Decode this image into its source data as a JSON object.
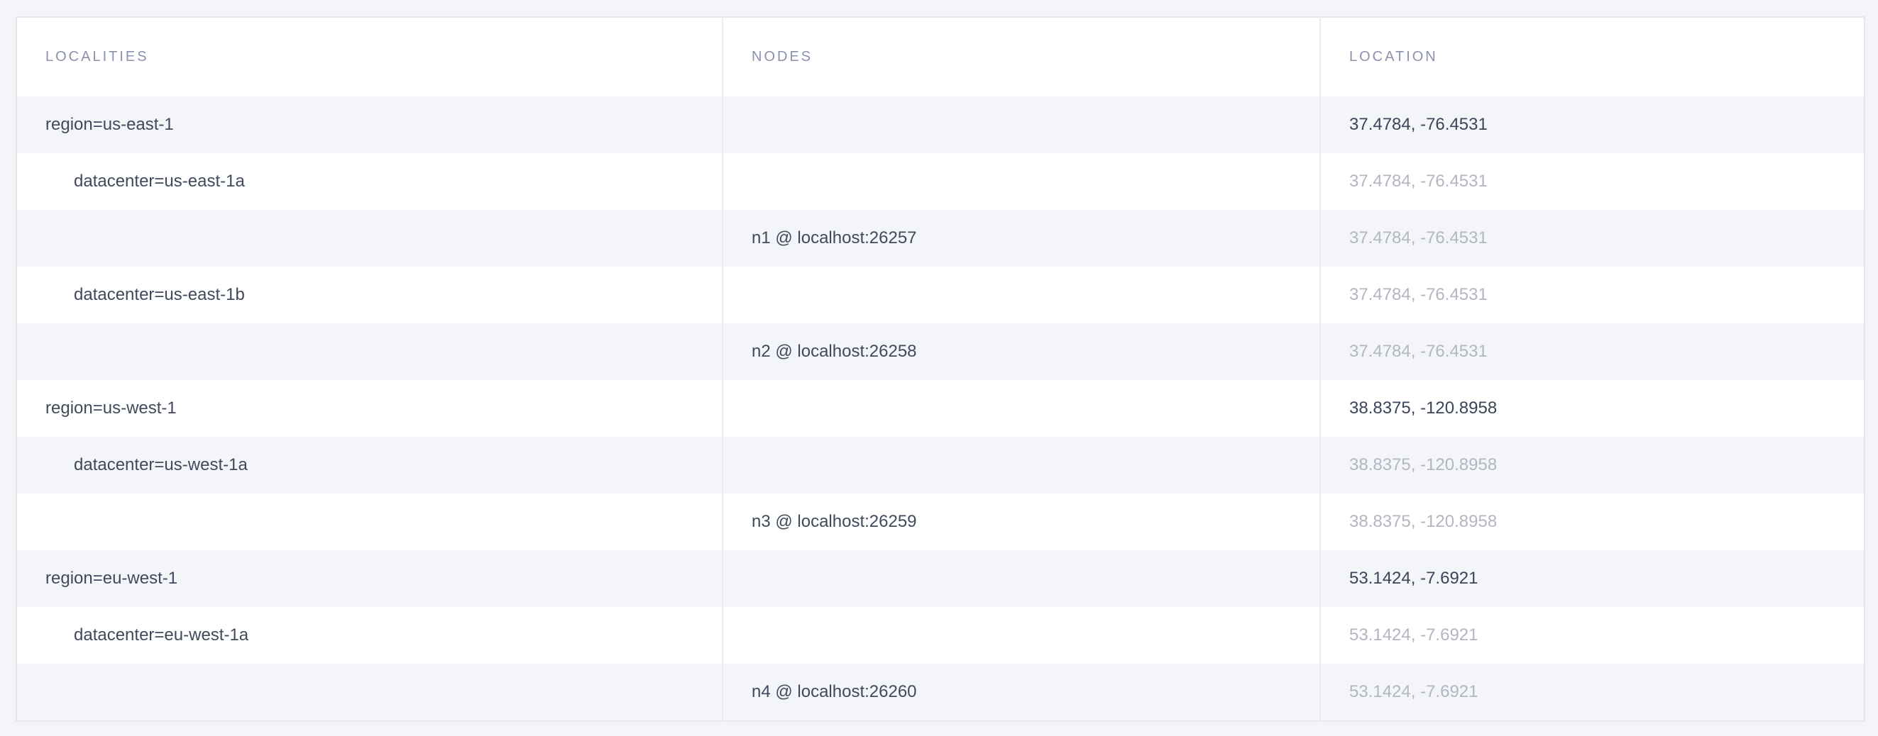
{
  "colors": {
    "page_background": "#f4f5f9",
    "row_stripe": "#f4f5f9",
    "row_white": "#ffffff",
    "table_border": "#e4e7ee",
    "column_divider": "#ebedf4",
    "header_text": "#8c92ad",
    "text_dark": "#3f4a5c",
    "text_muted": "#b2b6c2"
  },
  "table": {
    "headers": [
      "LOCALITIES",
      "NODES",
      "LOCATION"
    ],
    "rows": [
      {
        "locality": "region=us-east-1",
        "node": "",
        "location": "37.4784, -76.4531",
        "indent": 0,
        "location_muted": false
      },
      {
        "locality": "datacenter=us-east-1a",
        "node": "",
        "location": "37.4784, -76.4531",
        "indent": 1,
        "location_muted": true
      },
      {
        "locality": "",
        "node": "n1 @ localhost:26257",
        "location": "37.4784, -76.4531",
        "indent": 0,
        "location_muted": true
      },
      {
        "locality": "datacenter=us-east-1b",
        "node": "",
        "location": "37.4784, -76.4531",
        "indent": 1,
        "location_muted": true
      },
      {
        "locality": "",
        "node": "n2 @ localhost:26258",
        "location": "37.4784, -76.4531",
        "indent": 0,
        "location_muted": true
      },
      {
        "locality": "region=us-west-1",
        "node": "",
        "location": "38.8375, -120.8958",
        "indent": 0,
        "location_muted": false
      },
      {
        "locality": "datacenter=us-west-1a",
        "node": "",
        "location": "38.8375, -120.8958",
        "indent": 1,
        "location_muted": true
      },
      {
        "locality": "",
        "node": "n3 @ localhost:26259",
        "location": "38.8375, -120.8958",
        "indent": 0,
        "location_muted": true
      },
      {
        "locality": "region=eu-west-1",
        "node": "",
        "location": "53.1424, -7.6921",
        "indent": 0,
        "location_muted": false
      },
      {
        "locality": "datacenter=eu-west-1a",
        "node": "",
        "location": "53.1424, -7.6921",
        "indent": 1,
        "location_muted": true
      },
      {
        "locality": "",
        "node": "n4 @ localhost:26260",
        "location": "53.1424, -7.6921",
        "indent": 0,
        "location_muted": true
      }
    ]
  }
}
